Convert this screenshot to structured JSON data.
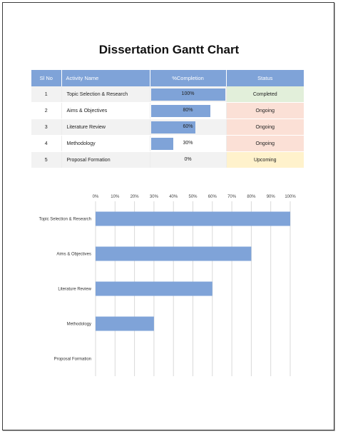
{
  "title": "Dissertation Gantt Chart",
  "table": {
    "headers": [
      "Sl No",
      "Activity Name",
      "%Completion",
      "Status"
    ],
    "rows": [
      {
        "no": "1",
        "activity": "Topic Selection & Research",
        "completion_label": "100%",
        "completion": 100,
        "status": "Completed",
        "status_color": "#e2efda"
      },
      {
        "no": "2",
        "activity": "Aims & Objectives",
        "completion_label": "80%",
        "completion": 80,
        "status": "Ongoing",
        "status_color": "#fbe0d6"
      },
      {
        "no": "3",
        "activity": "Literature Review",
        "completion_label": "60%",
        "completion": 60,
        "status": "Ongoing",
        "status_color": "#fbe0d6"
      },
      {
        "no": "4",
        "activity": "Methodology",
        "completion_label": "30%",
        "completion": 30,
        "status": "Ongoing",
        "status_color": "#fbe0d6"
      },
      {
        "no": "5",
        "activity": "Proposal Formation",
        "completion_label": "0%",
        "completion": 0,
        "status": "Upcoming",
        "status_color": "#fff2cc"
      }
    ]
  },
  "colors": {
    "accent": "#7fa3d8",
    "grid": "#d9d9d9"
  },
  "chart_data": {
    "type": "bar",
    "orientation": "horizontal",
    "categories": [
      "Topic Selection & Research",
      "Aims & Objectives",
      "Literature Review",
      "Methodology",
      "Proposal Formation"
    ],
    "values": [
      100,
      80,
      60,
      30,
      0
    ],
    "ticks": [
      "0%",
      "10%",
      "20%",
      "30%",
      "40%",
      "50%",
      "60%",
      "70%",
      "80%",
      "90%",
      "100%"
    ],
    "xlim": [
      0,
      100
    ],
    "axis_position": "top",
    "grid": true,
    "title": "",
    "xlabel": "",
    "ylabel": ""
  }
}
